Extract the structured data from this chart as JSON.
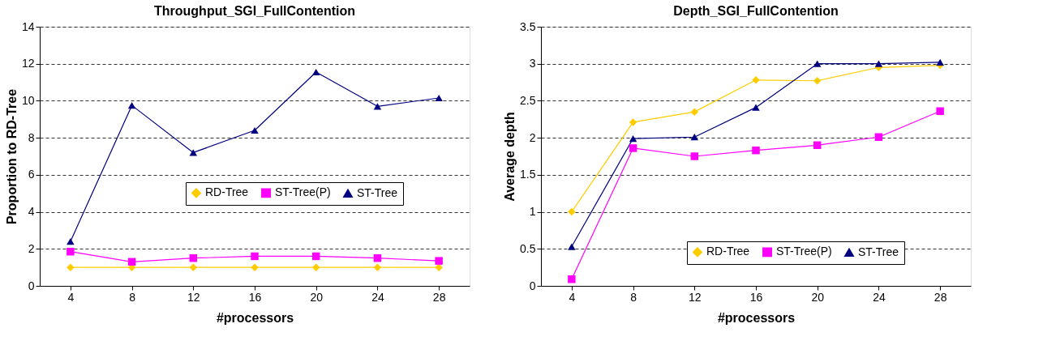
{
  "chart_data": [
    {
      "type": "line",
      "title": "Throughput_SGI_FullContention",
      "xlabel": "#processors",
      "ylabel": "Proportion to RD-Tree",
      "categories": [
        "4",
        "8",
        "12",
        "16",
        "20",
        "24",
        "28"
      ],
      "series": [
        {
          "name": "RD-Tree",
          "color": "#ffcc00",
          "marker": "diamond",
          "values": [
            1,
            1,
            1,
            1,
            1,
            1,
            1
          ]
        },
        {
          "name": "ST-Tree(P)",
          "color": "#ff00ff",
          "marker": "square",
          "values": [
            1.85,
            1.3,
            1.5,
            1.6,
            1.6,
            1.5,
            1.35
          ]
        },
        {
          "name": "ST-Tree",
          "color": "#000080",
          "marker": "triangle",
          "values": [
            2.4,
            9.75,
            7.2,
            8.4,
            11.55,
            9.7,
            10.15
          ]
        }
      ],
      "ylim": [
        0,
        14
      ],
      "yticks": [
        0,
        2,
        4,
        6,
        8,
        10,
        12,
        14
      ],
      "grid": "y",
      "legend": "right",
      "line_style": "solid"
    },
    {
      "type": "line",
      "title": "Depth_SGI_FullContention",
      "xlabel": "#processors",
      "ylabel": "Average depth",
      "categories": [
        "4",
        "8",
        "12",
        "16",
        "20",
        "24",
        "28"
      ],
      "series": [
        {
          "name": "RD-Tree",
          "color": "#ffcc00",
          "marker": "diamond",
          "values": [
            1.0,
            2.21,
            2.35,
            2.78,
            2.77,
            2.95,
            2.98
          ]
        },
        {
          "name": "ST-Tree(P)",
          "color": "#ff00ff",
          "marker": "square",
          "values": [
            0.09,
            1.86,
            1.75,
            1.83,
            1.9,
            2.01,
            2.36
          ]
        },
        {
          "name": "ST-Tree",
          "color": "#000080",
          "marker": "triangle",
          "values": [
            0.53,
            1.99,
            2.01,
            2.41,
            3.0,
            3.0,
            3.02
          ]
        }
      ],
      "ylim": [
        0,
        3.5
      ],
      "yticks": [
        0,
        0.5,
        1,
        1.5,
        2,
        2.5,
        3,
        3.5
      ],
      "grid": "y",
      "legend": "bottom right",
      "line_style": "solid"
    }
  ]
}
